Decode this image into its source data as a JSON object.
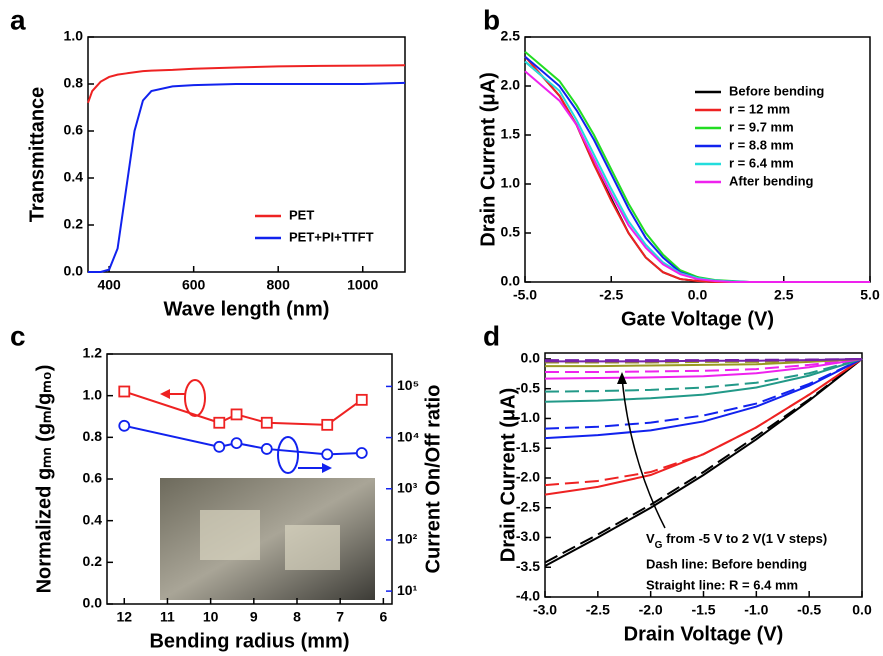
{
  "chart_data": [
    {
      "type": "line",
      "label": "a",
      "x_label": "Wave length (nm)",
      "y_label": "Transmittance",
      "xlim": [
        350,
        1100
      ],
      "xticks": [
        400,
        600,
        800,
        1000
      ],
      "ylim": [
        0,
        1.0
      ],
      "yticks": [
        {
          "value": 0,
          "label": "0.0"
        },
        0.2,
        0.4,
        0.6,
        0.8,
        {
          "value": 1,
          "label": "1.0"
        }
      ],
      "x": [
        350,
        360,
        380,
        400,
        420,
        440,
        460,
        480,
        500,
        550,
        600,
        700,
        800,
        900,
        1000,
        1100
      ],
      "legend": "lower right",
      "series": [
        {
          "name": "PET",
          "color": "#ee2222",
          "values": [
            0.72,
            0.77,
            0.81,
            0.83,
            0.84,
            0.845,
            0.85,
            0.855,
            0.857,
            0.86,
            0.865,
            0.87,
            0.875,
            0.877,
            0.878,
            0.88
          ]
        },
        {
          "name": "PET+PI+TTFT",
          "color": "#1122ee",
          "values": [
            0,
            0,
            0,
            0.01,
            0.1,
            0.35,
            0.6,
            0.73,
            0.77,
            0.79,
            0.795,
            0.8,
            0.8,
            0.8,
            0.8,
            0.805
          ]
        }
      ]
    },
    {
      "type": "line",
      "label": "b",
      "x_label": "Gate Voltage (V)",
      "y_label": "Drain Current (μA)",
      "xlim": [
        -5,
        5
      ],
      "xticks": [
        {
          "value": -5,
          "label": "-5.0"
        },
        -2.5,
        {
          "value": 0,
          "label": "0.0"
        },
        2.5,
        {
          "value": 5,
          "label": "5.0"
        }
      ],
      "ylim": [
        0,
        2.5
      ],
      "yticks": [
        {
          "value": 0,
          "label": "0.0"
        },
        0.5,
        {
          "value": 1,
          "label": "1.0"
        },
        1.5,
        {
          "value": 2,
          "label": "2.0"
        },
        2.5
      ],
      "x": [
        -5,
        -4.5,
        -4,
        -3.5,
        -3,
        -2.5,
        -2,
        -1.5,
        -1,
        -0.5,
        0,
        0.5,
        1,
        1.5,
        2,
        3,
        4,
        5
      ],
      "legend": "upper right",
      "series": [
        {
          "name": "Before bending",
          "color": "#000000",
          "values": [
            2.25,
            2.1,
            1.9,
            1.6,
            1.2,
            0.85,
            0.5,
            0.25,
            0.1,
            0.03,
            0.01,
            0,
            0,
            0,
            0,
            0,
            0,
            0
          ]
        },
        {
          "name": "r = 12 mm",
          "color": "#ee2222",
          "values": [
            2.3,
            2.1,
            1.9,
            1.6,
            1.2,
            0.83,
            0.5,
            0.25,
            0.1,
            0.03,
            0.01,
            0,
            0,
            0,
            0,
            0,
            0,
            0
          ]
        },
        {
          "name": "r = 9.7 mm",
          "color": "#22dd22",
          "values": [
            2.35,
            2.2,
            2.05,
            1.8,
            1.5,
            1.15,
            0.8,
            0.5,
            0.28,
            0.12,
            0.05,
            0.02,
            0.01,
            0,
            0,
            0,
            0,
            0
          ]
        },
        {
          "name": "r = 8.8 mm",
          "color": "#1122ee",
          "values": [
            2.3,
            2.15,
            2.0,
            1.75,
            1.45,
            1.1,
            0.75,
            0.45,
            0.25,
            0.1,
            0.04,
            0.015,
            0.005,
            0,
            0,
            0,
            0,
            0
          ]
        },
        {
          "name": "r = 6.4 mm",
          "color": "#22dddd",
          "values": [
            2.25,
            2.1,
            1.95,
            1.65,
            1.3,
            0.95,
            0.62,
            0.38,
            0.2,
            0.09,
            0.04,
            0.015,
            0.005,
            0,
            0,
            0,
            0,
            0
          ]
        },
        {
          "name": "After bending",
          "color": "#ee22ee",
          "values": [
            2.15,
            2.0,
            1.85,
            1.6,
            1.25,
            0.9,
            0.58,
            0.35,
            0.18,
            0.08,
            0.03,
            0.01,
            0,
            0,
            0,
            0,
            0,
            0
          ]
        }
      ]
    },
    {
      "type": "line",
      "label": "c",
      "x_label": "Bending radius (mm)",
      "y_label": "Normalized gₘₙ (gₘ/gₘ₀)",
      "y2_label": "Current On/Off ratio",
      "y_color": "#ee2222",
      "y2_color": "#1122ee",
      "xlim": [
        12.4,
        5.8
      ],
      "xticks": [
        12,
        11,
        10,
        9,
        8,
        7,
        6
      ],
      "ylim": [
        0,
        1.2
      ],
      "yticks": [
        {
          "value": 0,
          "label": "0.0"
        },
        0.2,
        0.4,
        0.6,
        0.8,
        {
          "value": 1,
          "label": "1.0"
        },
        1.2
      ],
      "y2log": true,
      "y2lim": [
        5.6,
        430000
      ],
      "y2ticks": [
        {
          "value": 10,
          "label": "10¹"
        },
        {
          "value": 100,
          "label": "10²"
        },
        {
          "value": 1000,
          "label": "10³"
        },
        {
          "value": 10000,
          "label": "10⁴"
        },
        {
          "value": 100000,
          "label": "10⁵"
        }
      ],
      "series": [
        {
          "color": "#ee2222",
          "marker": "square",
          "x": [
            12,
            9.8,
            9.4,
            8.7,
            7.3,
            6.5
          ],
          "values": [
            1.02,
            0.87,
            0.91,
            0.87,
            0.86,
            0.98
          ]
        },
        {
          "color": "#1122ee",
          "marker": "circle",
          "axis": "y2",
          "x": [
            12,
            9.8,
            9.4,
            8.7,
            7.3,
            6.5
          ],
          "values": [
            17000,
            6600,
            7800,
            6000,
            4700,
            5000
          ]
        }
      ]
    },
    {
      "type": "line",
      "label": "d",
      "x_label": "Drain Voltage (V)",
      "y_label": "Drain Current (μA)",
      "xlim": [
        -3,
        0
      ],
      "xticks": [
        {
          "value": -3,
          "label": "-3.0"
        },
        -2.5,
        {
          "value": -2,
          "label": "-2.0"
        },
        -1.5,
        {
          "value": -1,
          "label": "-1.0"
        },
        -0.5,
        {
          "value": 0,
          "label": "0.0"
        }
      ],
      "ylim": [
        -4,
        0.1
      ],
      "yticks": [
        {
          "value": -4,
          "label": "-4.0"
        },
        -3.5,
        {
          "value": -3,
          "label": "-3.0"
        },
        -2.5,
        {
          "value": -2,
          "label": "-2.0"
        },
        -1.5,
        {
          "value": -1,
          "label": "-1.0"
        },
        -0.5,
        {
          "value": 0,
          "label": "0.0"
        }
      ],
      "annotation": [
        "V",
        "G",
        " from -5 V to 2 V(1 V steps)"
      ],
      "annotation2": "Dash line: Before bending",
      "annotation3": "Straight line: R = 6.4 mm",
      "x": [
        -3,
        -2.5,
        -2,
        -1.5,
        -1,
        -0.5,
        0
      ],
      "series": [
        {
          "color": "#000000",
          "dash": true,
          "values": [
            -3.42,
            -2.95,
            -2.45,
            -1.9,
            -1.3,
            -0.68,
            0
          ]
        },
        {
          "color": "#000000",
          "values": [
            -3.48,
            -3.0,
            -2.5,
            -1.95,
            -1.35,
            -0.7,
            0
          ]
        },
        {
          "color": "#ee2222",
          "dash": true,
          "values": [
            -2.12,
            -2.05,
            -1.9,
            -1.6,
            -1.15,
            -0.6,
            0
          ]
        },
        {
          "color": "#ee2222",
          "values": [
            -2.28,
            -2.15,
            -1.95,
            -1.6,
            -1.15,
            -0.6,
            0
          ]
        },
        {
          "color": "#1122ee",
          "dash": true,
          "values": [
            -1.17,
            -1.14,
            -1.07,
            -0.95,
            -0.75,
            -0.42,
            0
          ]
        },
        {
          "color": "#1122ee",
          "values": [
            -1.33,
            -1.28,
            -1.2,
            -1.05,
            -0.8,
            -0.45,
            0
          ]
        },
        {
          "color": "#229988",
          "dash": true,
          "values": [
            -0.55,
            -0.54,
            -0.52,
            -0.48,
            -0.4,
            -0.24,
            0
          ]
        },
        {
          "color": "#229988",
          "values": [
            -0.72,
            -0.7,
            -0.66,
            -0.6,
            -0.48,
            -0.28,
            0
          ]
        },
        {
          "color": "#ee22ee",
          "dash": true,
          "values": [
            -0.22,
            -0.22,
            -0.21,
            -0.2,
            -0.17,
            -0.1,
            0
          ]
        },
        {
          "color": "#ee22ee",
          "values": [
            -0.33,
            -0.32,
            -0.31,
            -0.29,
            -0.24,
            -0.14,
            0
          ]
        },
        {
          "color": "#999922",
          "dash": true,
          "values": [
            -0.06,
            -0.06,
            -0.06,
            -0.05,
            -0.05,
            -0.03,
            0
          ]
        },
        {
          "color": "#999922",
          "values": [
            -0.12,
            -0.12,
            -0.11,
            -0.1,
            -0.09,
            -0.05,
            0
          ]
        },
        {
          "color": "#7722aa",
          "dash": true,
          "values": [
            -0.02,
            -0.02,
            -0.02,
            -0.02,
            -0.015,
            -0.01,
            0
          ]
        },
        {
          "color": "#7722aa",
          "values": [
            -0.04,
            -0.04,
            -0.04,
            -0.03,
            -0.03,
            -0.02,
            0
          ]
        }
      ]
    }
  ]
}
